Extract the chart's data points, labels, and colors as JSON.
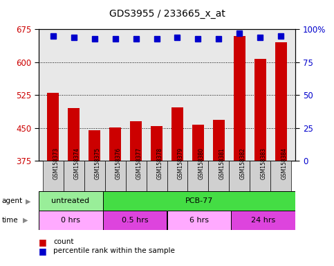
{
  "title": "GDS3955 / 233665_x_at",
  "samples": [
    "GSM158373",
    "GSM158374",
    "GSM158375",
    "GSM158376",
    "GSM158377",
    "GSM158378",
    "GSM158379",
    "GSM158380",
    "GSM158381",
    "GSM158382",
    "GSM158383",
    "GSM158384"
  ],
  "counts": [
    530,
    495,
    445,
    452,
    465,
    455,
    497,
    457,
    468,
    660,
    608,
    645
  ],
  "percentile_ranks": [
    95,
    94,
    93,
    93,
    93,
    93,
    94,
    93,
    93,
    97,
    94,
    95
  ],
  "ylim_left": [
    375,
    675
  ],
  "ylim_right": [
    0,
    100
  ],
  "yticks_left": [
    375,
    450,
    525,
    600,
    675
  ],
  "yticks_right": [
    0,
    25,
    50,
    75,
    100
  ],
  "bar_color": "#cc0000",
  "dot_color": "#0000cc",
  "agent_row": [
    {
      "label": "untreated",
      "start": 0,
      "end": 3,
      "color": "#99ee99"
    },
    {
      "label": "PCB-77",
      "start": 3,
      "end": 12,
      "color": "#44dd44"
    }
  ],
  "time_row": [
    {
      "label": "0 hrs",
      "start": 0,
      "end": 3,
      "color": "#ffaaff"
    },
    {
      "label": "0.5 hrs",
      "start": 3,
      "end": 6,
      "color": "#dd44dd"
    },
    {
      "label": "6 hrs",
      "start": 6,
      "end": 9,
      "color": "#ffaaff"
    },
    {
      "label": "24 hrs",
      "start": 9,
      "end": 12,
      "color": "#dd44dd"
    }
  ],
  "tick_color_left": "#cc0000",
  "tick_color_right": "#0000cc",
  "grid_color": "#000000"
}
